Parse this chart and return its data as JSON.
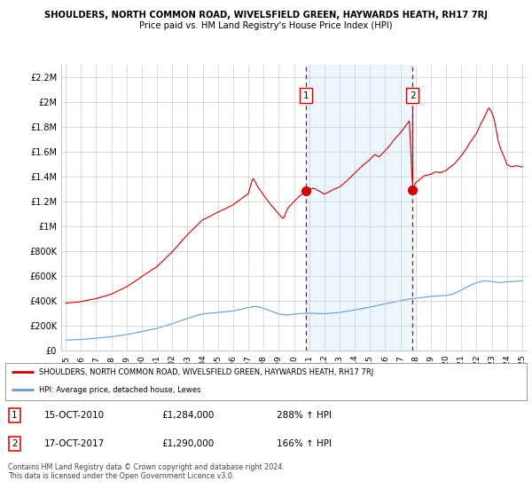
{
  "title_line1": "SHOULDERS, NORTH COMMON ROAD, WIVELSFIELD GREEN, HAYWARDS HEATH, RH17 7RJ",
  "title_line2": "Price paid vs. HM Land Registry's House Price Index (HPI)",
  "legend_label1": "SHOULDERS, NORTH COMMON ROAD, WIVELSFIELD GREEN, HAYWARDS HEATH, RH17 7RJ",
  "legend_label2": "HPI: Average price, detached house, Lewes",
  "line1_color": "#cc0000",
  "line2_color": "#6699cc",
  "annotation1_label": "1",
  "annotation1_date": "15-OCT-2010",
  "annotation1_price": "£1,284,000",
  "annotation1_hpi": "288% ↑ HPI",
  "annotation2_label": "2",
  "annotation2_date": "17-OCT-2017",
  "annotation2_price": "£1,290,000",
  "annotation2_hpi": "166% ↑ HPI",
  "copyright_text": "Contains HM Land Registry data © Crown copyright and database right 2024.\nThis data is licensed under the Open Government Licence v3.0.",
  "ylim": [
    0,
    2300000
  ],
  "yticks": [
    0,
    200000,
    400000,
    600000,
    800000,
    1000000,
    1200000,
    1400000,
    1600000,
    1800000,
    2000000,
    2200000
  ],
  "ytick_labels": [
    "£0",
    "£200K",
    "£400K",
    "£600K",
    "£800K",
    "£1M",
    "£1.2M",
    "£1.4M",
    "£1.6M",
    "£1.8M",
    "£2M",
    "£2.2M"
  ],
  "background_color": "#ffffff",
  "grid_color": "#cccccc",
  "sale1_x": 2010.79,
  "sale1_y": 1284000,
  "sale2_x": 2017.79,
  "sale2_y": 1290000,
  "vline_color": "#cc0000",
  "shade_color": "#ddeeff",
  "shade_alpha": 0.5,
  "xtick_years": [
    1995,
    1996,
    1997,
    1998,
    1999,
    2000,
    2001,
    2002,
    2003,
    2004,
    2005,
    2006,
    2007,
    2008,
    2009,
    2010,
    2011,
    2012,
    2013,
    2014,
    2015,
    2016,
    2017,
    2018,
    2019,
    2020,
    2021,
    2022,
    2023,
    2024,
    2025
  ],
  "xlim": [
    1994.7,
    2025.3
  ]
}
